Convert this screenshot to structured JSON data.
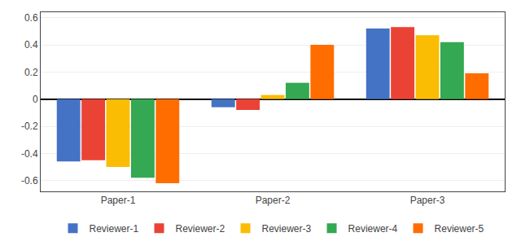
{
  "chart_data": {
    "type": "bar",
    "categories": [
      "Paper-1",
      "Paper-2",
      "Paper-3"
    ],
    "series": [
      {
        "name": "Reviewer-1",
        "color": "#4472C4",
        "values": [
          -0.46,
          -0.06,
          0.52
        ]
      },
      {
        "name": "Reviewer-2",
        "color": "#EA4335",
        "values": [
          -0.45,
          -0.08,
          0.53
        ]
      },
      {
        "name": "Reviewer-3",
        "color": "#FBBC04",
        "values": [
          -0.5,
          0.03,
          0.47
        ]
      },
      {
        "name": "Reviewer-4",
        "color": "#34A853",
        "values": [
          -0.58,
          0.12,
          0.42
        ]
      },
      {
        "name": "Reviewer-5",
        "color": "#FF6D00",
        "values": [
          -0.62,
          0.4,
          0.19
        ]
      }
    ],
    "ylim": [
      -0.68,
      0.64
    ],
    "yticks": [
      -0.6,
      -0.4,
      -0.2,
      0,
      0.2,
      0.4,
      0.6
    ],
    "grid": true,
    "legend": "bottom"
  }
}
